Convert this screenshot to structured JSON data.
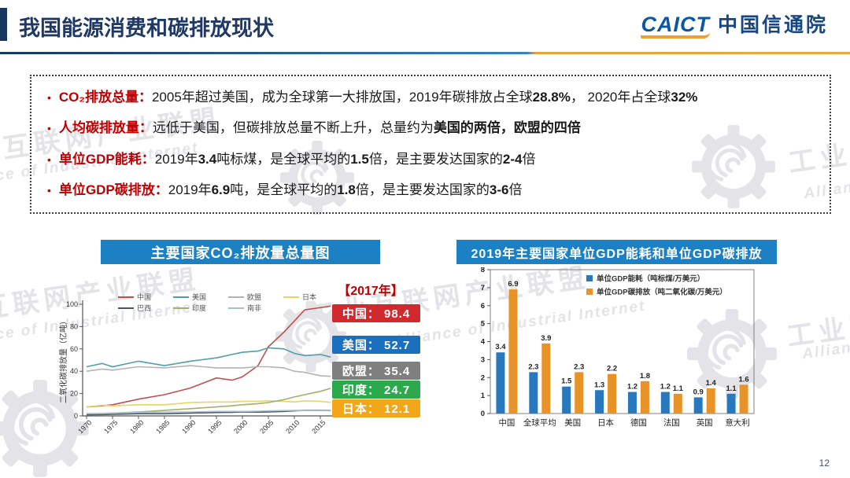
{
  "header": {
    "title": "我国能源消费和碳排放现状",
    "logo": {
      "caict": "CAICT",
      "name": "中国信通院"
    },
    "page_number": "12"
  },
  "summary_box": {
    "bullets": [
      {
        "label": "CO₂排放总量：",
        "segments": [
          {
            "t": "2005年超过美国，成为全球第一大排放国，2019年碳排放占全球",
            "b": false
          },
          {
            "t": "28.8%",
            "b": true
          },
          {
            "t": "， 2020年占全球",
            "b": false
          },
          {
            "t": "32%",
            "b": true
          }
        ]
      },
      {
        "label": "人均碳排放量：",
        "segments": [
          {
            "t": "远低于美国，但碳排放总量不断上升，总量约为",
            "b": false
          },
          {
            "t": "美国的两倍，欧盟的四倍",
            "b": true
          }
        ]
      },
      {
        "label": "单位GDP能耗：",
        "segments": [
          {
            "t": "2019年",
            "b": false
          },
          {
            "t": "3.4",
            "b": true
          },
          {
            "t": "吨标煤，是全球平均的",
            "b": false
          },
          {
            "t": "1.5",
            "b": true
          },
          {
            "t": "倍，是主要发达国家的",
            "b": false
          },
          {
            "t": "2-4",
            "b": true
          },
          {
            "t": "倍",
            "b": false
          }
        ]
      },
      {
        "label": "单位GDP碳排放：",
        "segments": [
          {
            "t": "2019年",
            "b": false
          },
          {
            "t": "6.9",
            "b": true
          },
          {
            "t": "吨，是全球平均的",
            "b": false
          },
          {
            "t": "1.8",
            "b": true
          },
          {
            "t": "倍，是主要发达国家的",
            "b": false
          },
          {
            "t": "3-6",
            "b": true
          },
          {
            "t": "倍",
            "b": false
          }
        ]
      }
    ]
  },
  "watermarks": {
    "cn": "工业互联网产业联盟",
    "en": "Alliance of Industrial Internet"
  },
  "chart_data": [
    {
      "type": "line",
      "title": "主要国家CO₂排放量总量图",
      "ylabel": "二氧化碳排放量（亿吨）",
      "ylim": [
        0,
        100
      ],
      "yticks": [
        0,
        20,
        40,
        60,
        80,
        100
      ],
      "x": [
        1970,
        1973,
        1975,
        1980,
        1985,
        1990,
        1995,
        1998,
        2000,
        2003,
        2005,
        2008,
        2010,
        2012,
        2015,
        2017
      ],
      "xticks": [
        1970,
        1975,
        1980,
        1985,
        1990,
        1995,
        2000,
        2005,
        2010,
        2015
      ],
      "annotation": "【2017年】",
      "series": [
        {
          "name": "中国",
          "color": "#c0504d",
          "values": [
            8,
            9,
            10,
            15,
            19,
            25,
            34,
            32,
            35,
            45,
            62,
            75,
            85,
            95,
            97,
            98.4
          ]
        },
        {
          "name": "美国",
          "color": "#4f9ea8",
          "values": [
            44,
            47,
            44,
            49,
            45,
            49,
            52,
            55,
            57,
            58,
            61,
            60,
            56,
            54,
            55,
            52.7
          ]
        },
        {
          "name": "欧盟",
          "color": "#b3b3b3",
          "values": [
            40,
            42,
            41,
            44,
            43,
            45,
            43,
            43,
            43,
            44,
            44,
            43,
            40,
            39,
            36,
            35.4
          ]
        },
        {
          "name": "日本",
          "color": "#e3d463",
          "values": [
            8,
            9.5,
            9,
            10,
            10,
            12,
            12.5,
            12.5,
            13,
            13,
            13.5,
            13,
            12.5,
            13.5,
            13,
            12.1
          ]
        },
        {
          "name": "巴西",
          "color": "#44546a",
          "values": [
            1,
            1.2,
            1.5,
            2,
            2,
            2.5,
            3,
            3.2,
            3.5,
            3.4,
            3.5,
            4,
            4.5,
            5,
            5,
            4.8
          ]
        },
        {
          "name": "印度",
          "color": "#a2b06a",
          "values": [
            2,
            2.2,
            2.5,
            3.5,
            5,
            6.5,
            8,
            9,
            10,
            11,
            12,
            14.5,
            17,
            19,
            22,
            24.7
          ]
        },
        {
          "name": "南非",
          "color": "#a9c0cd",
          "values": [
            2,
            2.2,
            2.5,
            3,
            3.5,
            3.5,
            4,
            4,
            4,
            4.2,
            4.5,
            4.8,
            5,
            4.8,
            4.8,
            4.5
          ]
        }
      ],
      "legend_rows": [
        [
          "中国",
          "美国",
          "欧盟",
          "日本"
        ],
        [
          "巴西",
          "印度",
          "南非"
        ]
      ],
      "value_badges": [
        {
          "label": "中国",
          "value": "98.4",
          "color": "#d02a2e"
        },
        {
          "label": "美国",
          "value": "52.7",
          "color": "#1b6fbf"
        },
        {
          "label": "欧盟",
          "value": "35.4",
          "color": "#7f7f7f"
        },
        {
          "label": "印度",
          "value": "24.7",
          "color": "#2ca84d"
        },
        {
          "label": "日本",
          "value": "12.1",
          "color": "#f2a71b"
        }
      ]
    },
    {
      "type": "bar",
      "title": "2019年主要国家单位GDP能耗和单位GDP碳排放",
      "categories": [
        "中国",
        "全球平均",
        "美国",
        "日本",
        "德国",
        "法国",
        "英国",
        "意大利"
      ],
      "series": [
        {
          "name": "单位GDP能耗（吨标煤/万美元）",
          "color": "#2878be",
          "values": [
            3.4,
            2.3,
            1.5,
            1.3,
            1.2,
            1.2,
            0.9,
            1.1
          ]
        },
        {
          "name": "单位GDP碳排放（吨二氧化碳/万美元）",
          "color": "#e89327",
          "values": [
            6.9,
            3.9,
            2.3,
            2.2,
            1.8,
            1.1,
            1.4,
            1.6
          ]
        }
      ],
      "ylim": [
        0,
        8
      ],
      "yticks": [
        0,
        1,
        2,
        3,
        4,
        5,
        6,
        7,
        8
      ],
      "legend_position": "top-right-inside"
    }
  ]
}
